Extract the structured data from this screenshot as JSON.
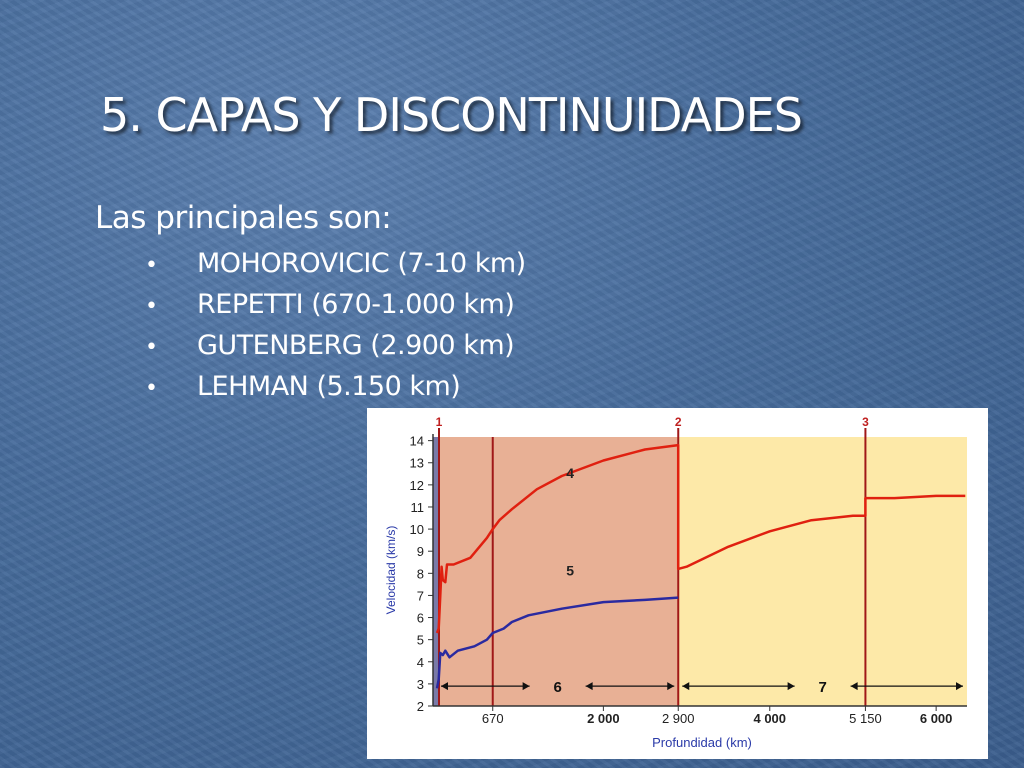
{
  "slide": {
    "title": "5. CAPAS Y DISCONTINUIDADES",
    "intro": "Las principales son:",
    "bullets": [
      "MOHOROVICIC (7-10 km)",
      "REPETTI (670-1.000 km)",
      "GUTENBERG (2.900 km)",
      "LEHMAN (5.150 km)"
    ],
    "bullet_symbol": "•"
  },
  "chart_data": {
    "type": "line",
    "xlabel": "Profundidad (km)",
    "ylabel": "Velocidad (km/s)",
    "xlim": [
      0,
      6371
    ],
    "ylim": [
      2,
      14.3
    ],
    "y_ticks": [
      "2",
      "3",
      "4",
      "5",
      "6",
      "7",
      "8",
      "9",
      "10",
      "11",
      "12",
      "13",
      "14"
    ],
    "x_ticks": [
      {
        "value": 670,
        "label": "670"
      },
      {
        "value": 2000,
        "label": "2 000"
      },
      {
        "value": 2900,
        "label": "2 900"
      },
      {
        "value": 4000,
        "label": "4 000"
      },
      {
        "value": 5150,
        "label": "5 150"
      },
      {
        "value": 6000,
        "label": "6 000"
      }
    ],
    "regions": [
      {
        "from": 0,
        "to": 2900,
        "color": "#e8b095",
        "label": "6"
      },
      {
        "from": 2900,
        "to": 6371,
        "color": "#fde9a8",
        "label": "7"
      }
    ],
    "discontinuities": [
      {
        "x": 10,
        "label": "1"
      },
      {
        "x": 2900,
        "label": "2"
      },
      {
        "x": 5150,
        "label": "3"
      }
    ],
    "layer_boundary": 670,
    "series": [
      {
        "name": "4",
        "color": "#e02010",
        "points": [
          [
            0,
            5.3
          ],
          [
            20,
            5.5
          ],
          [
            40,
            7.0
          ],
          [
            55,
            8.3
          ],
          [
            70,
            7.7
          ],
          [
            100,
            7.6
          ],
          [
            120,
            8.4
          ],
          [
            200,
            8.4
          ],
          [
            400,
            8.7
          ],
          [
            600,
            9.6
          ],
          [
            670,
            10.0
          ],
          [
            750,
            10.4
          ],
          [
            900,
            10.9
          ],
          [
            1200,
            11.8
          ],
          [
            1500,
            12.4
          ],
          [
            2000,
            13.1
          ],
          [
            2500,
            13.6
          ],
          [
            2900,
            13.8
          ],
          [
            2900,
            8.2
          ],
          [
            3000,
            8.3
          ],
          [
            3500,
            9.2
          ],
          [
            4000,
            9.9
          ],
          [
            4500,
            10.4
          ],
          [
            5000,
            10.6
          ],
          [
            5150,
            10.6
          ],
          [
            5150,
            11.4
          ],
          [
            5500,
            11.4
          ],
          [
            6000,
            11.5
          ],
          [
            6350,
            11.5
          ]
        ]
      },
      {
        "name": "5",
        "color": "#2a2aa0",
        "points": [
          [
            0,
            2.8
          ],
          [
            20,
            3.2
          ],
          [
            40,
            4.4
          ],
          [
            70,
            4.3
          ],
          [
            100,
            4.5
          ],
          [
            150,
            4.2
          ],
          [
            250,
            4.5
          ],
          [
            450,
            4.7
          ],
          [
            600,
            5.0
          ],
          [
            670,
            5.3
          ],
          [
            800,
            5.5
          ],
          [
            900,
            5.8
          ],
          [
            1100,
            6.1
          ],
          [
            1500,
            6.4
          ],
          [
            2000,
            6.7
          ],
          [
            2500,
            6.8
          ],
          [
            2900,
            6.9
          ]
        ]
      }
    ]
  }
}
